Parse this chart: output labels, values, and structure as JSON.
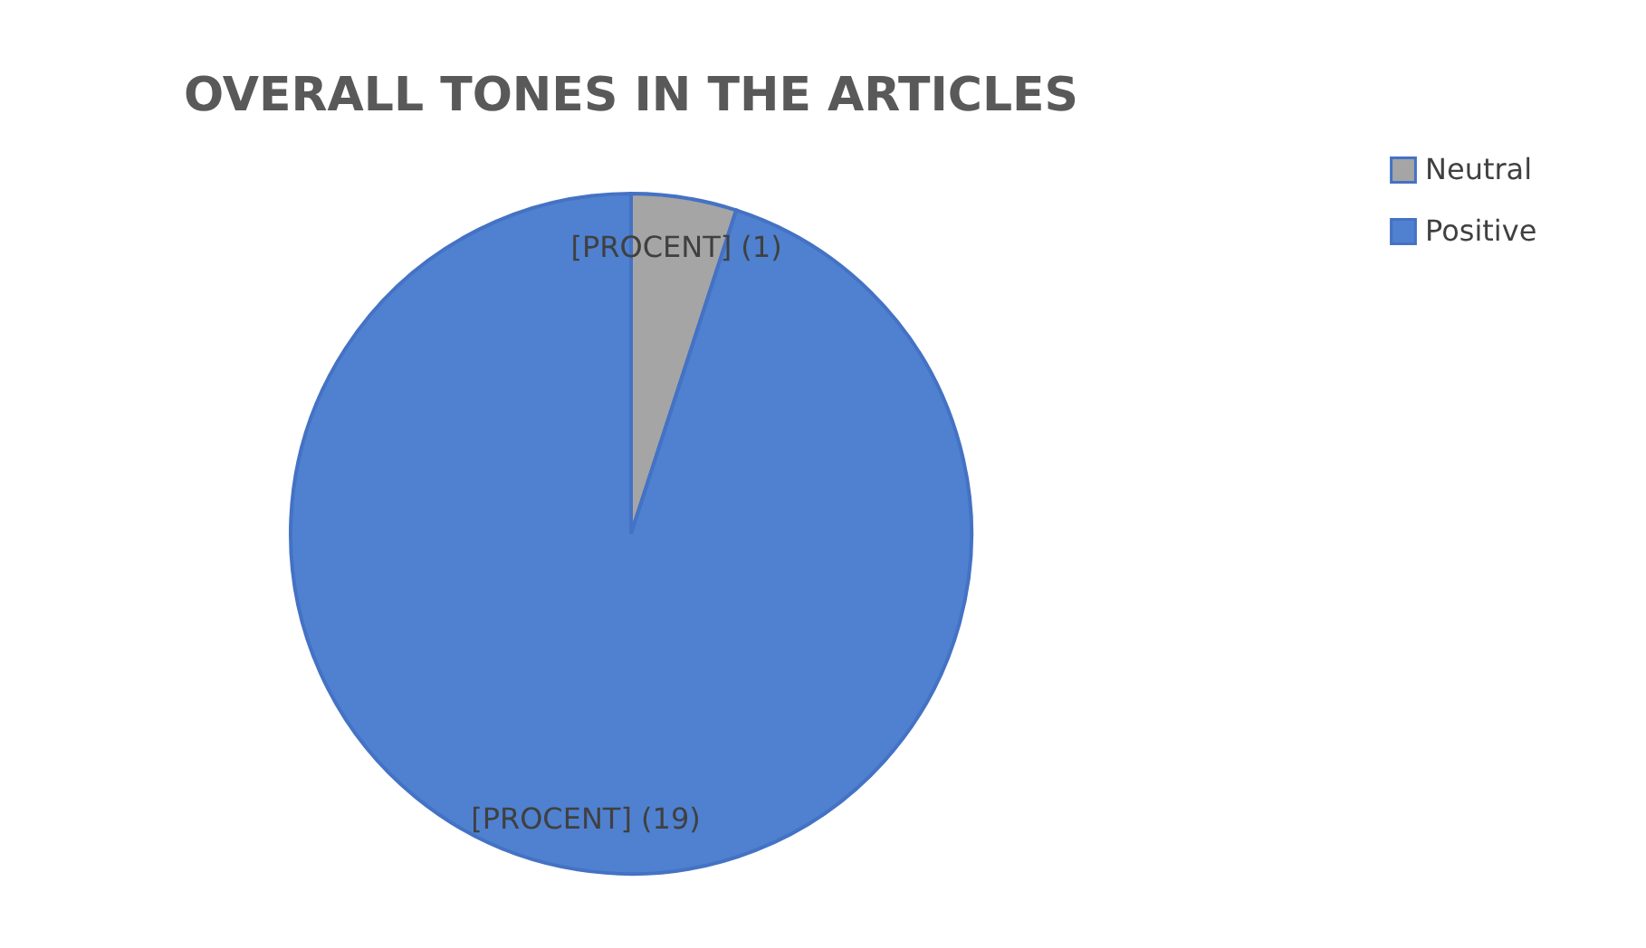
{
  "chart_data": {
    "type": "pie",
    "title": "OVERALL TONES IN THE ARTICLES",
    "categories": [
      "Neutral",
      "Positive"
    ],
    "values": [
      1,
      19
    ],
    "colors": [
      "#a5a5a5",
      "#4f81d0"
    ],
    "value_labels": [
      "[PROCENT] (1)",
      "[PROCENT] (19)"
    ],
    "legend": "right"
  }
}
